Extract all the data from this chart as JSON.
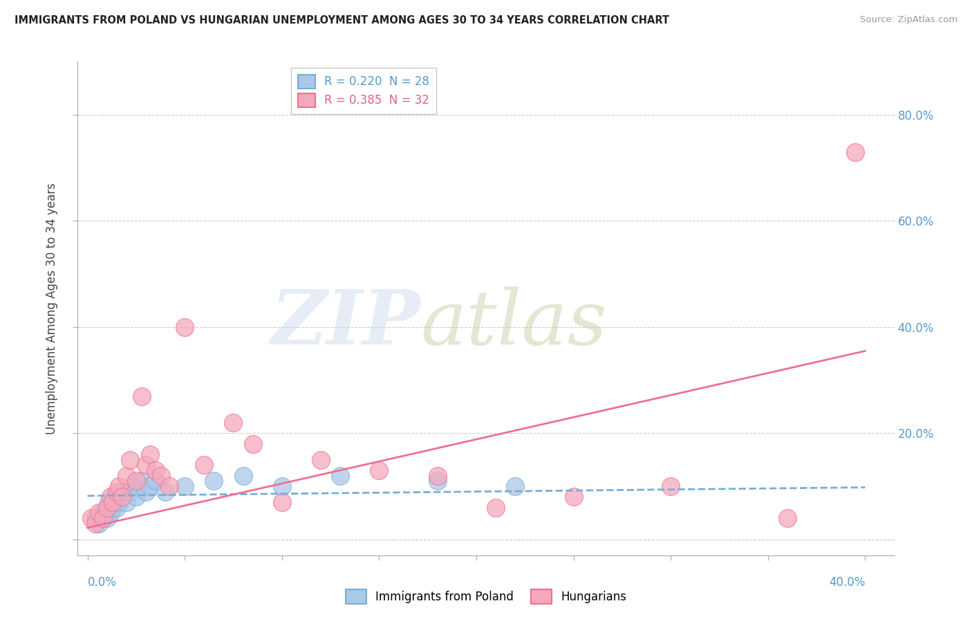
{
  "title": "IMMIGRANTS FROM POLAND VS HUNGARIAN UNEMPLOYMENT AMONG AGES 30 TO 34 YEARS CORRELATION CHART",
  "source": "Source: ZipAtlas.com",
  "ylabel": "Unemployment Among Ages 30 to 34 years",
  "ytick_values": [
    0.0,
    0.2,
    0.4,
    0.6,
    0.8
  ],
  "ytick_labels": [
    "",
    "20.0%",
    "40.0%",
    "60.0%",
    "80.0%"
  ],
  "xrange": [
    -0.005,
    0.415
  ],
  "yrange": [
    -0.03,
    0.9
  ],
  "legend1_label": "R = 0.220  N = 28",
  "legend2_label": "R = 0.385  N = 32",
  "scatter1_color": "#aac8e8",
  "scatter2_color": "#f5a8bc",
  "line1_color": "#78aed4",
  "line2_color": "#ee7090",
  "bottom_legend_label1": "Immigrants from Poland",
  "bottom_legend_label2": "Hungarians",
  "poland_x": [
    0.004,
    0.006,
    0.008,
    0.01,
    0.011,
    0.012,
    0.013,
    0.014,
    0.015,
    0.016,
    0.017,
    0.018,
    0.02,
    0.022,
    0.023,
    0.025,
    0.028,
    0.03,
    0.032,
    0.035,
    0.04,
    0.05,
    0.065,
    0.08,
    0.1,
    0.13,
    0.18,
    0.22
  ],
  "poland_y": [
    0.04,
    0.03,
    0.05,
    0.04,
    0.07,
    0.05,
    0.06,
    0.08,
    0.06,
    0.07,
    0.09,
    0.08,
    0.07,
    0.09,
    0.1,
    0.08,
    0.11,
    0.09,
    0.1,
    0.11,
    0.09,
    0.1,
    0.11,
    0.12,
    0.1,
    0.12,
    0.11,
    0.1
  ],
  "hungarian_x": [
    0.002,
    0.004,
    0.006,
    0.008,
    0.01,
    0.012,
    0.013,
    0.015,
    0.016,
    0.018,
    0.02,
    0.022,
    0.025,
    0.028,
    0.03,
    0.032,
    0.035,
    0.038,
    0.042,
    0.05,
    0.06,
    0.075,
    0.085,
    0.1,
    0.12,
    0.15,
    0.18,
    0.21,
    0.25,
    0.3,
    0.36,
    0.395
  ],
  "hungarian_y": [
    0.04,
    0.03,
    0.05,
    0.04,
    0.06,
    0.08,
    0.07,
    0.09,
    0.1,
    0.08,
    0.12,
    0.15,
    0.11,
    0.27,
    0.14,
    0.16,
    0.13,
    0.12,
    0.1,
    0.4,
    0.14,
    0.22,
    0.18,
    0.07,
    0.15,
    0.13,
    0.12,
    0.06,
    0.08,
    0.1,
    0.04,
    0.73
  ],
  "poland_line_x": [
    0.0,
    0.4
  ],
  "poland_line_y": [
    0.082,
    0.098
  ],
  "hungarian_line_x": [
    0.0,
    0.4
  ],
  "hungarian_line_y": [
    0.022,
    0.355
  ]
}
